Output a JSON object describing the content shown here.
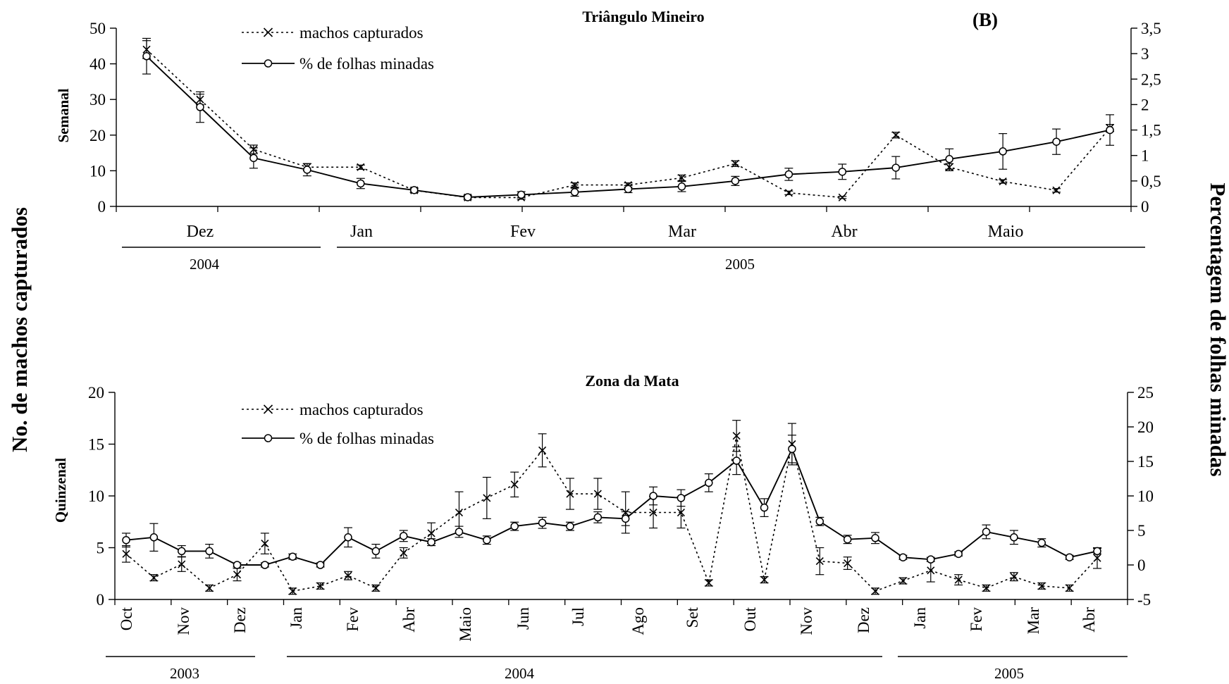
{
  "figure": {
    "panel_label": "(B)",
    "left_label": "No. de machos capturados",
    "right_label": "Percentagem de folhas minadas"
  },
  "chart_data": [
    {
      "type": "line",
      "title": "Triângulo Mineiro",
      "ylabel": "Semanal",
      "ylim": [
        0,
        50
      ],
      "yticks": [
        "0",
        "10",
        "20",
        "30",
        "40",
        "50"
      ],
      "y2lim": [
        0,
        3.5
      ],
      "y2ticks": [
        "0",
        "0,5",
        "1",
        "1,5",
        "2",
        "2,5",
        "3",
        "3,5"
      ],
      "grid": false,
      "legend_position": "top-left",
      "months": [
        "Dez",
        "Jan",
        "Fev",
        "Mar",
        "Abr",
        "Maio"
      ],
      "years": [
        "2004",
        "2005"
      ],
      "series": [
        {
          "name": "machos capturados",
          "axis": "left",
          "style": "dotted-x",
          "values": [
            44,
            30,
            16,
            11,
            11,
            4.5,
            2.5,
            2.5,
            6,
            6,
            8,
            12,
            3.8,
            2.5,
            20,
            11,
            7,
            4.5,
            22
          ],
          "errors": [
            2.5,
            1.5,
            1.2,
            1,
            0.6,
            0.6,
            0.5,
            0.5,
            0.6,
            0.6,
            0.8,
            0.8,
            0.5,
            0.3,
            0.8,
            1,
            0.5,
            0.5,
            1
          ]
        },
        {
          "name": "% de folhas minadas",
          "axis": "right",
          "style": "solid-circle",
          "values": [
            2.95,
            1.95,
            0.95,
            0.72,
            0.45,
            0.32,
            0.18,
            0.23,
            0.28,
            0.34,
            0.39,
            0.5,
            0.63,
            0.68,
            0.76,
            0.93,
            1.08,
            1.27,
            1.5
          ],
          "errors": [
            0.35,
            0.3,
            0.2,
            0.12,
            0.1,
            0.04,
            0.04,
            0.06,
            0.08,
            0.07,
            0.1,
            0.09,
            0.12,
            0.15,
            0.22,
            0.2,
            0.35,
            0.25,
            0.3
          ]
        }
      ]
    },
    {
      "type": "line",
      "title": "Zona da Mata",
      "ylabel": "Quinzenal",
      "ylim": [
        0,
        20
      ],
      "yticks": [
        "0",
        "5",
        "10",
        "15",
        "20"
      ],
      "y2lim": [
        -5,
        25
      ],
      "y2ticks": [
        "-5",
        "0",
        "5",
        "10",
        "15",
        "20",
        "25"
      ],
      "grid": false,
      "legend_position": "top-left",
      "months": [
        "Oct",
        "Nov",
        "Dez",
        "Jan",
        "Fev",
        "Abr",
        "Maio",
        "Jun",
        "Jul",
        "Ago",
        "Set",
        "Out",
        "Nov",
        "Dez",
        "Jan",
        "Fev",
        "Mar",
        "Abr"
      ],
      "years": [
        "2003",
        "2004",
        "2005"
      ],
      "series": [
        {
          "name": "machos capturados",
          "axis": "left",
          "style": "dotted-x",
          "values": [
            4.4,
            2.1,
            3.4,
            1.1,
            2.4,
            5.4,
            0.8,
            1.3,
            2.3,
            1.1,
            4.5,
            6.4,
            8.4,
            9.8,
            11.1,
            14.4,
            10.2,
            10.2,
            8.4,
            8.4,
            8.4,
            1.6,
            15.8,
            1.9,
            15.0,
            3.7,
            3.5,
            0.8,
            1.8,
            2.8,
            1.9,
            1.1,
            2.2,
            1.3,
            1.1,
            4.0
          ],
          "errors": [
            0.8,
            0.3,
            0.7,
            0.3,
            0.6,
            1.0,
            0.3,
            0.3,
            0.4,
            0.3,
            0.5,
            1.0,
            2.0,
            2.0,
            1.2,
            1.6,
            1.5,
            1.5,
            2.0,
            1.5,
            1.5,
            0.3,
            1.5,
            0.3,
            2.0,
            1.3,
            0.6,
            0.3,
            0.3,
            1.1,
            0.5,
            0.3,
            0.4,
            0.3,
            0.3,
            1.0
          ]
        },
        {
          "name": "% de folhas minadas",
          "axis": "right",
          "style": "solid-circle",
          "values": [
            3.6,
            4.0,
            2.0,
            2.0,
            0.0,
            0.0,
            1.2,
            0.0,
            4.0,
            2.0,
            4.2,
            3.3,
            4.8,
            3.6,
            5.6,
            6.1,
            5.6,
            6.9,
            6.7,
            10.0,
            9.7,
            11.9,
            15.1,
            8.3,
            16.8,
            6.3,
            3.7,
            3.9,
            1.1,
            0.8,
            1.6,
            4.8,
            4.0,
            3.2,
            1.1,
            2.0
          ],
          "errors": [
            1.0,
            2.0,
            0.8,
            1.0,
            0.3,
            0.3,
            0.4,
            0.3,
            1.4,
            1.0,
            0.8,
            0.5,
            0.8,
            0.6,
            0.6,
            0.8,
            0.6,
            0.8,
            1.0,
            1.3,
            1.2,
            1.3,
            2.0,
            1.3,
            2.0,
            0.6,
            0.6,
            0.8,
            0.3,
            0.3,
            0.3,
            1.0,
            1.0,
            0.6,
            0.3,
            0.4
          ]
        }
      ]
    }
  ]
}
